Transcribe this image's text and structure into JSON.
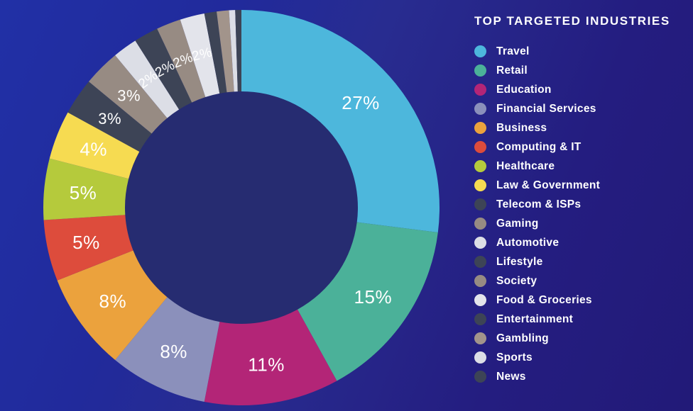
{
  "title": "TOP TARGETED INDUSTRIES",
  "background": {
    "gradient_start": "#2130a6",
    "gradient_end": "#221a78",
    "donut_hole_color": "#262c71",
    "label_text_color": "#ffffff",
    "legend_text_color": "#ffffff"
  },
  "chart_data": {
    "type": "pie",
    "subtype": "donut",
    "title": "TOP TARGETED INDUSTRIES",
    "legend_position": "right",
    "start_angle_deg": 0,
    "direction": "clockwise",
    "label_format": "percent",
    "slices": [
      {
        "industry": "Travel",
        "value": 27,
        "label": "27%",
        "color": "#4db7dc"
      },
      {
        "industry": "Retail",
        "value": 15,
        "label": "15%",
        "color": "#4bb199"
      },
      {
        "industry": "Education",
        "value": 11,
        "label": "11%",
        "color": "#b32577"
      },
      {
        "industry": "Financial Services",
        "value": 8,
        "label": "8%",
        "color": "#8b90bb"
      },
      {
        "industry": "Business",
        "value": 8,
        "label": "8%",
        "color": "#eba23d"
      },
      {
        "industry": "Computing & IT",
        "value": 5,
        "label": "5%",
        "color": "#dd4c3c"
      },
      {
        "industry": "Healthcare",
        "value": 5,
        "label": "5%",
        "color": "#b5ca3c"
      },
      {
        "industry": "Law & Government",
        "value": 4,
        "label": "4%",
        "color": "#f6db51"
      },
      {
        "industry": "Telecom & ISPs",
        "value": 3,
        "label": "3%",
        "color": "#3d4456"
      },
      {
        "industry": "Gaming",
        "value": 3,
        "label": "3%",
        "color": "#978b83"
      },
      {
        "industry": "Automotive",
        "value": 2,
        "label": "2%",
        "color": "#dcdee6"
      },
      {
        "industry": "Lifestyle",
        "value": 2,
        "label": "2%",
        "color": "#3d4456"
      },
      {
        "industry": "Society",
        "value": 2,
        "label": "2%",
        "color": "#978b83"
      },
      {
        "industry": "Food & Groceries",
        "value": 2,
        "label": "2%",
        "color": "#e3e4eb"
      },
      {
        "industry": "Entertainment",
        "value": 1,
        "label": "",
        "color": "#3d4456"
      },
      {
        "industry": "Gambling",
        "value": 1,
        "label": "",
        "color": "#a2948b"
      },
      {
        "industry": "Sports",
        "value": 0.5,
        "label": "",
        "color": "#dcdee6"
      },
      {
        "industry": "News",
        "value": 0.5,
        "label": "",
        "color": "#3d4456"
      }
    ]
  }
}
